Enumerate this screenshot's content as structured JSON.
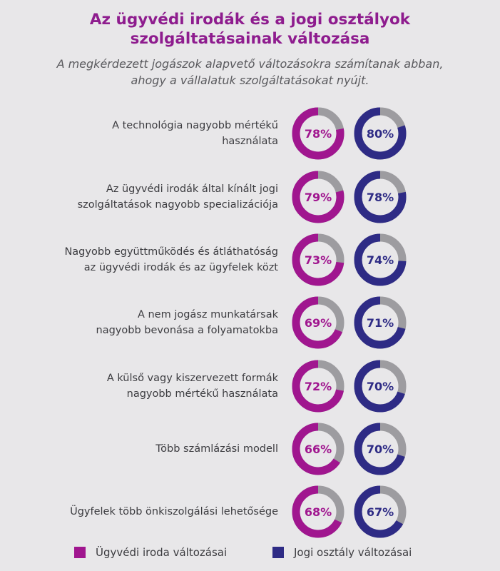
{
  "title_line1": "Az ügyvédi irodák és a jogi osztályok",
  "title_line2": "szolgáltatásainak változása",
  "subtitle_line1": "A megkérdezett jogászok alapvető változásokra számítanak abban,",
  "subtitle_line2": "ahogy a vállalatuk szolgáltatásokat nyújt.",
  "colors": {
    "law_firm": "#a0168f",
    "legal_dept": "#2e2b85",
    "track": "#9d9ca0",
    "background": "#e8e7e9"
  },
  "chart_data": {
    "type": "donut",
    "categories": [
      "A technológia nagyobb mértékű használata",
      "Az ügyvédi irodák által kínált jogi szolgáltatások nagyobb specializációja",
      "Nagyobb együttműködés és átláthatóság az ügyvédi irodák és az ügyfelek közt",
      "A nem jogász munkatársak nagyobb bevonása a folyamatokba",
      "A külső vagy kiszervezett formák nagyobb mértékű használata",
      "Több számlázási modell",
      "Ügyfelek több önkiszolgálási lehetősége"
    ],
    "category_lines": [
      [
        "A technológia nagyobb mértékű",
        "használata"
      ],
      [
        "Az ügyvédi irodák által kínált jogi",
        "szolgáltatások nagyobb specializációja"
      ],
      [
        "Nagyobb együttműködés és átláthatóság",
        "az ügyvédi irodák és az ügyfelek közt"
      ],
      [
        "A nem jogász munkatársak",
        "nagyobb bevonása a folyamatokba"
      ],
      [
        "A külső vagy kiszervezett formák",
        "nagyobb mértékű használata"
      ],
      [
        "Több számlázási modell"
      ],
      [
        "Ügyfelek több önkiszolgálási lehetősége"
      ]
    ],
    "series": [
      {
        "name": "Ügyvédi iroda változásai",
        "values": [
          78,
          79,
          73,
          69,
          72,
          66,
          68
        ]
      },
      {
        "name": "Jogi osztály változásai",
        "values": [
          80,
          78,
          74,
          71,
          70,
          70,
          67
        ]
      }
    ],
    "unit": "%"
  },
  "legend": [
    {
      "label": "Ügyvédi iroda változásai"
    },
    {
      "label": "Jogi osztály változásai"
    }
  ]
}
